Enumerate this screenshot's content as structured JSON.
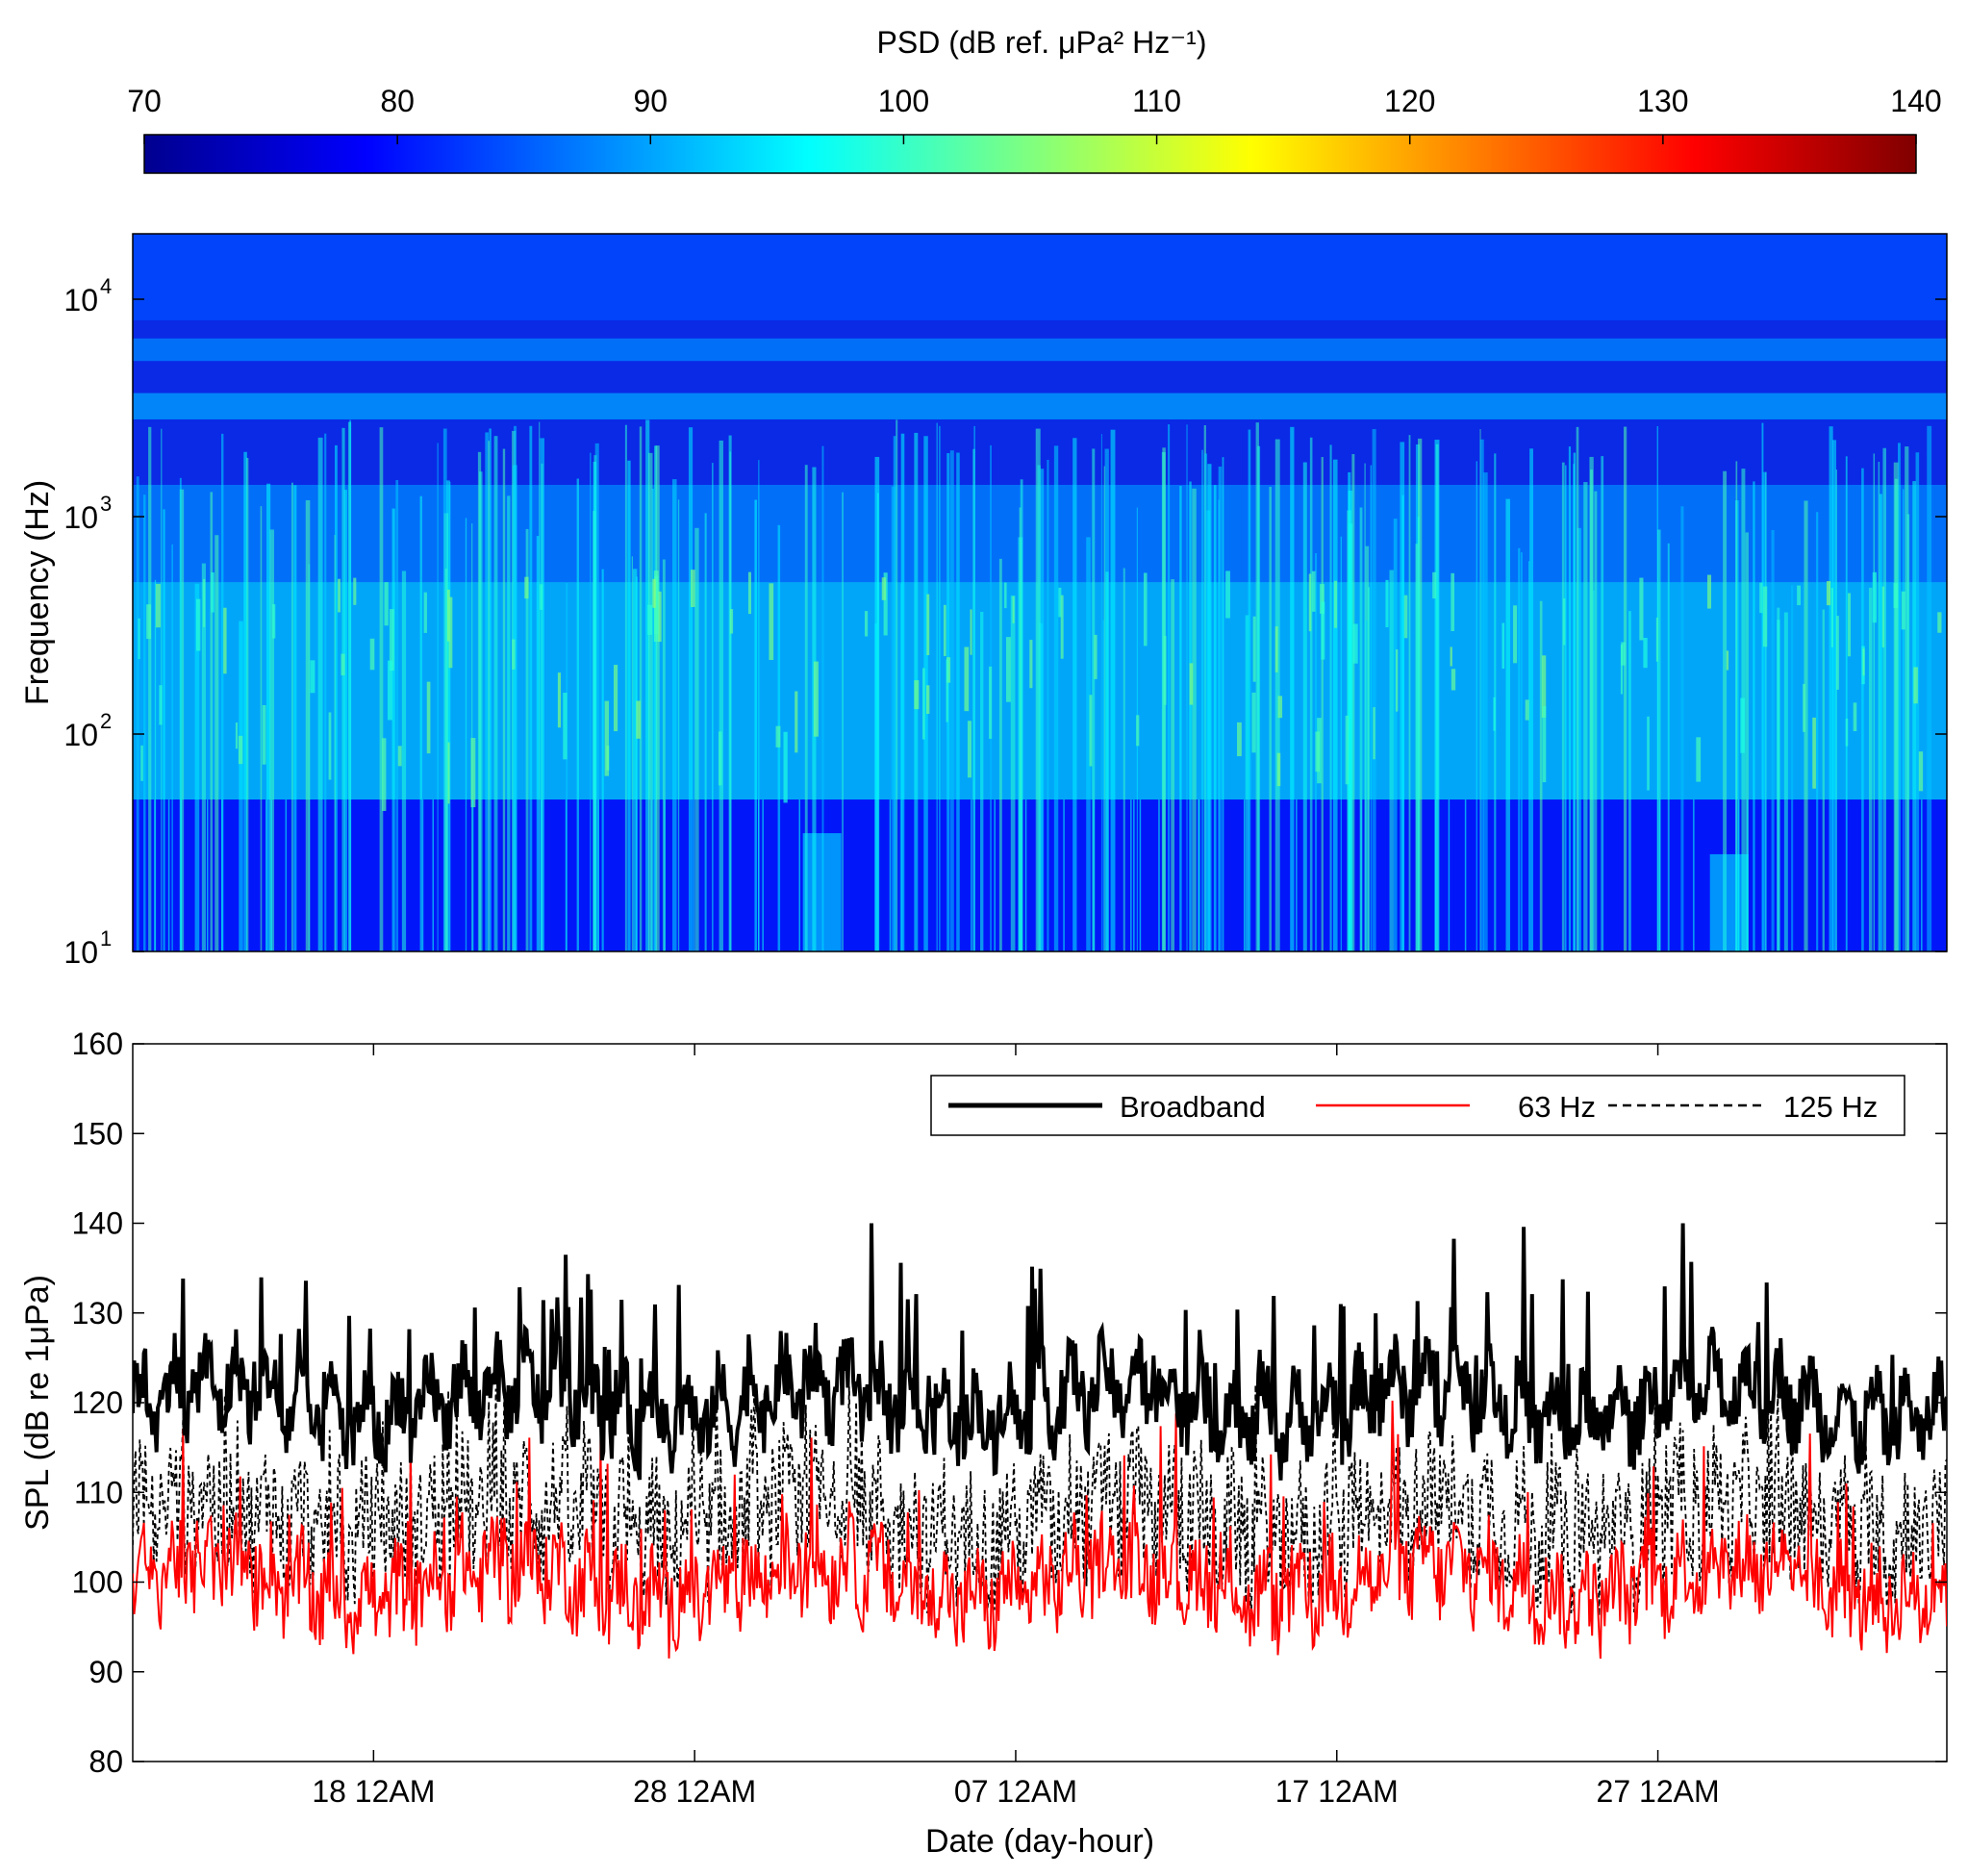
{
  "chart_data": [
    {
      "type": "heatmap",
      "colorbar": {
        "label": "PSD (dB ref. μPa² Hz⁻¹)",
        "range": [
          70,
          140
        ],
        "ticks": [
          "70",
          "80",
          "90",
          "100",
          "110",
          "120",
          "130",
          "140"
        ],
        "colormap": "jet",
        "colors": [
          "#00008f",
          "#0000ff",
          "#00ffff",
          "#ffff00",
          "#ff0000",
          "#800000"
        ],
        "placement": "top"
      },
      "ylabel": "Frequency (Hz)",
      "yscale": "log",
      "ylim": [
        10,
        20000
      ],
      "yticks": [
        {
          "value": 10,
          "base": "10",
          "exp": "1"
        },
        {
          "value": 100,
          "base": "10",
          "exp": "2"
        },
        {
          "value": 1000,
          "base": "10",
          "exp": "3"
        },
        {
          "value": 10000,
          "base": "10",
          "exp": "4"
        }
      ],
      "bands": [
        {
          "f_low": 10,
          "f_high": 50,
          "psd": 80
        },
        {
          "f_low": 50,
          "f_high": 500,
          "psd": 93
        },
        {
          "f_low": 500,
          "f_high": 1400,
          "psd": 88
        },
        {
          "f_low": 2800,
          "f_high": 3700,
          "psd": 90
        },
        {
          "f_low": 5200,
          "f_high": 6600,
          "psd": 88
        },
        {
          "f_low": 8000,
          "f_high": 20000,
          "psd": 84
        }
      ]
    },
    {
      "type": "line",
      "ylabel": "SPL (dB re 1μPa)",
      "xlabel": "Date (day-hour)",
      "ylim": [
        80,
        160
      ],
      "yticks": [
        "80",
        "90",
        "100",
        "110",
        "120",
        "130",
        "140",
        "150",
        "160"
      ],
      "x_range_days": [
        0,
        56.5
      ],
      "xticks": [
        {
          "day": 7.5,
          "label": "18 12AM"
        },
        {
          "day": 17.5,
          "label": "28 12AM"
        },
        {
          "day": 27.5,
          "label": "07 12AM"
        },
        {
          "day": 37.5,
          "label": "17 12AM"
        },
        {
          "day": 47.5,
          "label": "27 12AM"
        }
      ],
      "legend": {
        "placement": "top-right"
      },
      "series": [
        {
          "name": "Broadband",
          "color": "#000000",
          "style": "solid-thick",
          "baseline": 120,
          "range": [
            105,
            140
          ]
        },
        {
          "name": "63 Hz",
          "color": "#ff0000",
          "style": "solid",
          "baseline": 100,
          "range": [
            89,
            122
          ]
        },
        {
          "name": "125 Hz",
          "color": "#000000",
          "style": "dashed",
          "baseline": 107,
          "range": [
            94,
            122
          ]
        }
      ]
    }
  ]
}
